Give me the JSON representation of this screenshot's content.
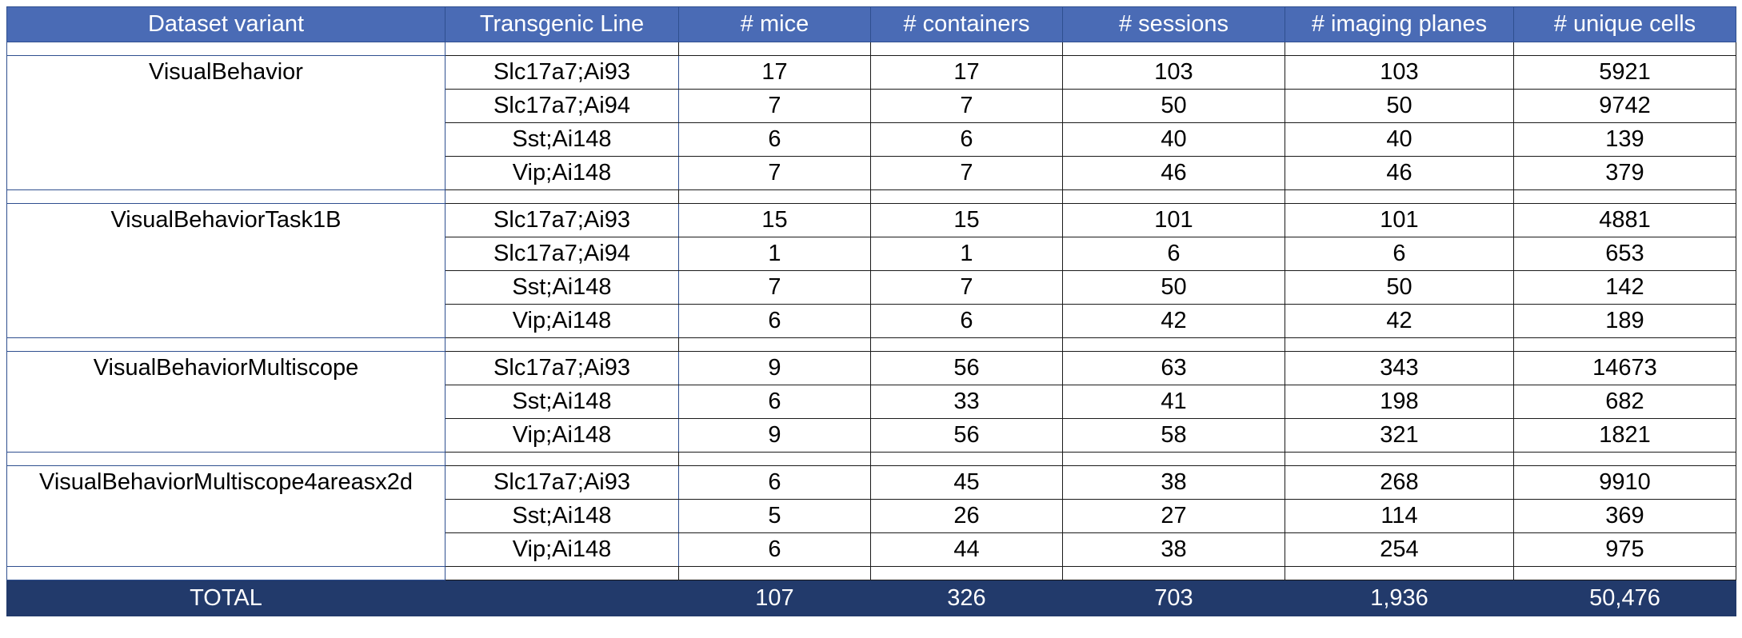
{
  "table": {
    "headers": [
      "Dataset variant",
      "Transgenic Line",
      "# mice",
      "# containers",
      "# sessions",
      "# imaging planes",
      "# unique cells"
    ],
    "groups": [
      {
        "variant": "VisualBehavior",
        "rows": [
          [
            "Slc17a7;Ai93",
            "17",
            "17",
            "103",
            "103",
            "5921"
          ],
          [
            "Slc17a7;Ai94",
            "7",
            "7",
            "50",
            "50",
            "9742"
          ],
          [
            "Sst;Ai148",
            "6",
            "6",
            "40",
            "40",
            "139"
          ],
          [
            "Vip;Ai148",
            "7",
            "7",
            "46",
            "46",
            "379"
          ]
        ]
      },
      {
        "variant": "VisualBehaviorTask1B",
        "rows": [
          [
            "Slc17a7;Ai93",
            "15",
            "15",
            "101",
            "101",
            "4881"
          ],
          [
            "Slc17a7;Ai94",
            "1",
            "1",
            "6",
            "6",
            "653"
          ],
          [
            "Sst;Ai148",
            "7",
            "7",
            "50",
            "50",
            "142"
          ],
          [
            "Vip;Ai148",
            "6",
            "6",
            "42",
            "42",
            "189"
          ]
        ]
      },
      {
        "variant": "VisualBehaviorMultiscope",
        "rows": [
          [
            "Slc17a7;Ai93",
            "9",
            "56",
            "63",
            "343",
            "14673"
          ],
          [
            "Sst;Ai148",
            "6",
            "33",
            "41",
            "198",
            "682"
          ],
          [
            "Vip;Ai148",
            "9",
            "56",
            "58",
            "321",
            "1821"
          ]
        ]
      },
      {
        "variant": "VisualBehaviorMultiscope4areasx2d",
        "rows": [
          [
            "Slc17a7;Ai93",
            "6",
            "45",
            "38",
            "268",
            "9910"
          ],
          [
            "Sst;Ai148",
            "5",
            "26",
            "27",
            "114",
            "369"
          ],
          [
            "Vip;Ai148",
            "6",
            "44",
            "38",
            "254",
            "975"
          ]
        ]
      }
    ],
    "total": {
      "label": "TOTAL",
      "line": "",
      "values": [
        "107",
        "326",
        "703",
        "1,936",
        "50,476"
      ]
    }
  },
  "colors": {
    "header_bg": "#4a6bb5",
    "total_bg": "#223a6b",
    "header_text": "#ffffff"
  }
}
